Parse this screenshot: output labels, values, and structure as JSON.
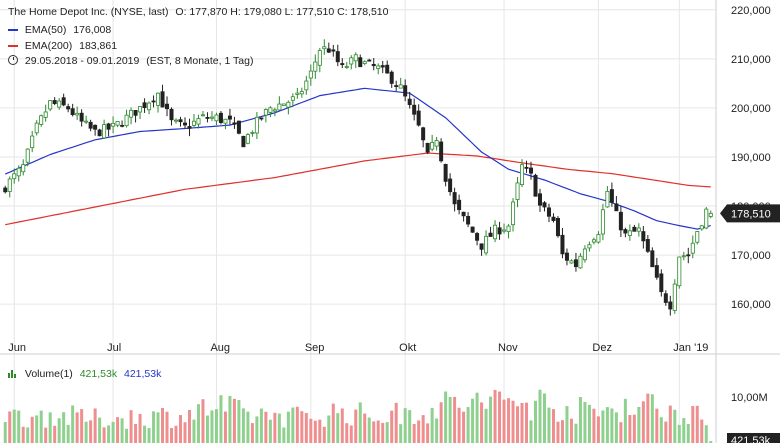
{
  "header": {
    "title": "The Home Depot Inc. (NYSE, last)",
    "ohlc": "O: 177,870  H: 179,080  L: 177,510  C: 178,510",
    "ema50_label": "EMA(50)",
    "ema50_value": "176,008",
    "ema200_label": "EMA(200)",
    "ema200_value": "183,861",
    "range_text": "29.05.2018 - 09.01.2019",
    "range_note": "(EST, 8 Monate, 1 Tag)",
    "clock_icon": "clock-icon"
  },
  "volume_header": {
    "label": "Volume(1)",
    "value1": "421,53k",
    "value2": "421,53k",
    "icon": "volume-bars-icon"
  },
  "colors": {
    "up": "#2c8a2c",
    "down": "#222222",
    "ema50": "#2436c9",
    "ema200": "#e0302a",
    "volume_up": "#8ed08e",
    "volume_down": "#ef8e8e",
    "badge": "#222222",
    "grid": "#e6e6e6"
  },
  "chart_data": {
    "type": "candlestick",
    "x_tick_labels": [
      "Jun",
      "Jul",
      "Aug",
      "Sep",
      "Okt",
      "Nov",
      "Dez",
      "Jan '19"
    ],
    "x_tick_index": [
      2,
      24,
      47,
      68,
      89,
      111,
      132,
      150
    ],
    "y_ticks": [
      160,
      170,
      180,
      190,
      200,
      210,
      220
    ],
    "y_tick_labels": [
      "160,000",
      "170,000",
      "180,000",
      "190,000",
      "200,000",
      "210,000",
      "220,000"
    ],
    "ylim": [
      153.5,
      222
    ],
    "last_price": 178.51,
    "last_price_label": "178,510",
    "anchors": [
      [
        0,
        184
      ],
      [
        4,
        188
      ],
      [
        7,
        196
      ],
      [
        10,
        201
      ],
      [
        14,
        200
      ],
      [
        17,
        197
      ],
      [
        20,
        195
      ],
      [
        24,
        196
      ],
      [
        27,
        198
      ],
      [
        30,
        200
      ],
      [
        34,
        203
      ],
      [
        37,
        197
      ],
      [
        40,
        196
      ],
      [
        44,
        198
      ],
      [
        47,
        198
      ],
      [
        50,
        197
      ],
      [
        53,
        193
      ],
      [
        56,
        197
      ],
      [
        59,
        200
      ],
      [
        62,
        201
      ],
      [
        65,
        202
      ],
      [
        68,
        207
      ],
      [
        70,
        212
      ],
      [
        72,
        212
      ],
      [
        75,
        208
      ],
      [
        78,
        210
      ],
      [
        80,
        209
      ],
      [
        83,
        208
      ],
      [
        86,
        206
      ],
      [
        88,
        204
      ],
      [
        90,
        200
      ],
      [
        92,
        196
      ],
      [
        94,
        190
      ],
      [
        96,
        194
      ],
      [
        98,
        186
      ],
      [
        100,
        180
      ],
      [
        103,
        176
      ],
      [
        106,
        172
      ],
      [
        109,
        175
      ],
      [
        112,
        176
      ],
      [
        115,
        188
      ],
      [
        117,
        186
      ],
      [
        119,
        180
      ],
      [
        122,
        177
      ],
      [
        124,
        170
      ],
      [
        127,
        168
      ],
      [
        129,
        172
      ],
      [
        132,
        175
      ],
      [
        134,
        183
      ],
      [
        136,
        178
      ],
      [
        138,
        174
      ],
      [
        141,
        175
      ],
      [
        143,
        170
      ],
      [
        146,
        162
      ],
      [
        148,
        160
      ],
      [
        150,
        170
      ],
      [
        152,
        170
      ],
      [
        154,
        175
      ],
      [
        156,
        179
      ],
      [
        157,
        178.5
      ]
    ],
    "ema50_anchors": [
      [
        0,
        186.5
      ],
      [
        10,
        190.5
      ],
      [
        20,
        193.5
      ],
      [
        30,
        195.2
      ],
      [
        40,
        195.8
      ],
      [
        50,
        196.5
      ],
      [
        60,
        199
      ],
      [
        70,
        202.5
      ],
      [
        80,
        204
      ],
      [
        90,
        203
      ],
      [
        98,
        198
      ],
      [
        106,
        191
      ],
      [
        112,
        187.5
      ],
      [
        120,
        185.3
      ],
      [
        128,
        182.5
      ],
      [
        134,
        181
      ],
      [
        140,
        179
      ],
      [
        145,
        177
      ],
      [
        150,
        176
      ],
      [
        154,
        175.3
      ],
      [
        157,
        176
      ]
    ],
    "ema200_anchors": [
      [
        0,
        176.2
      ],
      [
        20,
        179.8
      ],
      [
        40,
        183.4
      ],
      [
        60,
        185.8
      ],
      [
        80,
        189.2
      ],
      [
        94,
        190.8
      ],
      [
        105,
        190.2
      ],
      [
        115,
        188.8
      ],
      [
        125,
        187.5
      ],
      [
        135,
        186.6
      ],
      [
        145,
        185.2
      ],
      [
        152,
        184.2
      ],
      [
        157,
        183.9
      ]
    ],
    "volume_axis_label": "10,00M",
    "volume_axis_value_m": 10,
    "volume_last_label": "421,53k",
    "volume_anchors_m": [
      [
        0,
        5.5
      ],
      [
        10,
        6
      ],
      [
        20,
        5.2
      ],
      [
        30,
        5.6
      ],
      [
        40,
        6
      ],
      [
        47,
        8
      ],
      [
        54,
        6
      ],
      [
        60,
        6.2
      ],
      [
        67,
        5.5
      ],
      [
        74,
        6.8
      ],
      [
        82,
        5.8
      ],
      [
        88,
        6.3
      ],
      [
        95,
        7.5
      ],
      [
        100,
        8.5
      ],
      [
        106,
        8.5
      ],
      [
        112,
        9.2
      ],
      [
        116,
        8.5
      ],
      [
        120,
        8.8
      ],
      [
        126,
        7.2
      ],
      [
        132,
        6.6
      ],
      [
        138,
        8.3
      ],
      [
        144,
        8.1
      ],
      [
        149,
        6.8
      ],
      [
        154,
        7.3
      ],
      [
        157,
        0.42
      ]
    ]
  }
}
